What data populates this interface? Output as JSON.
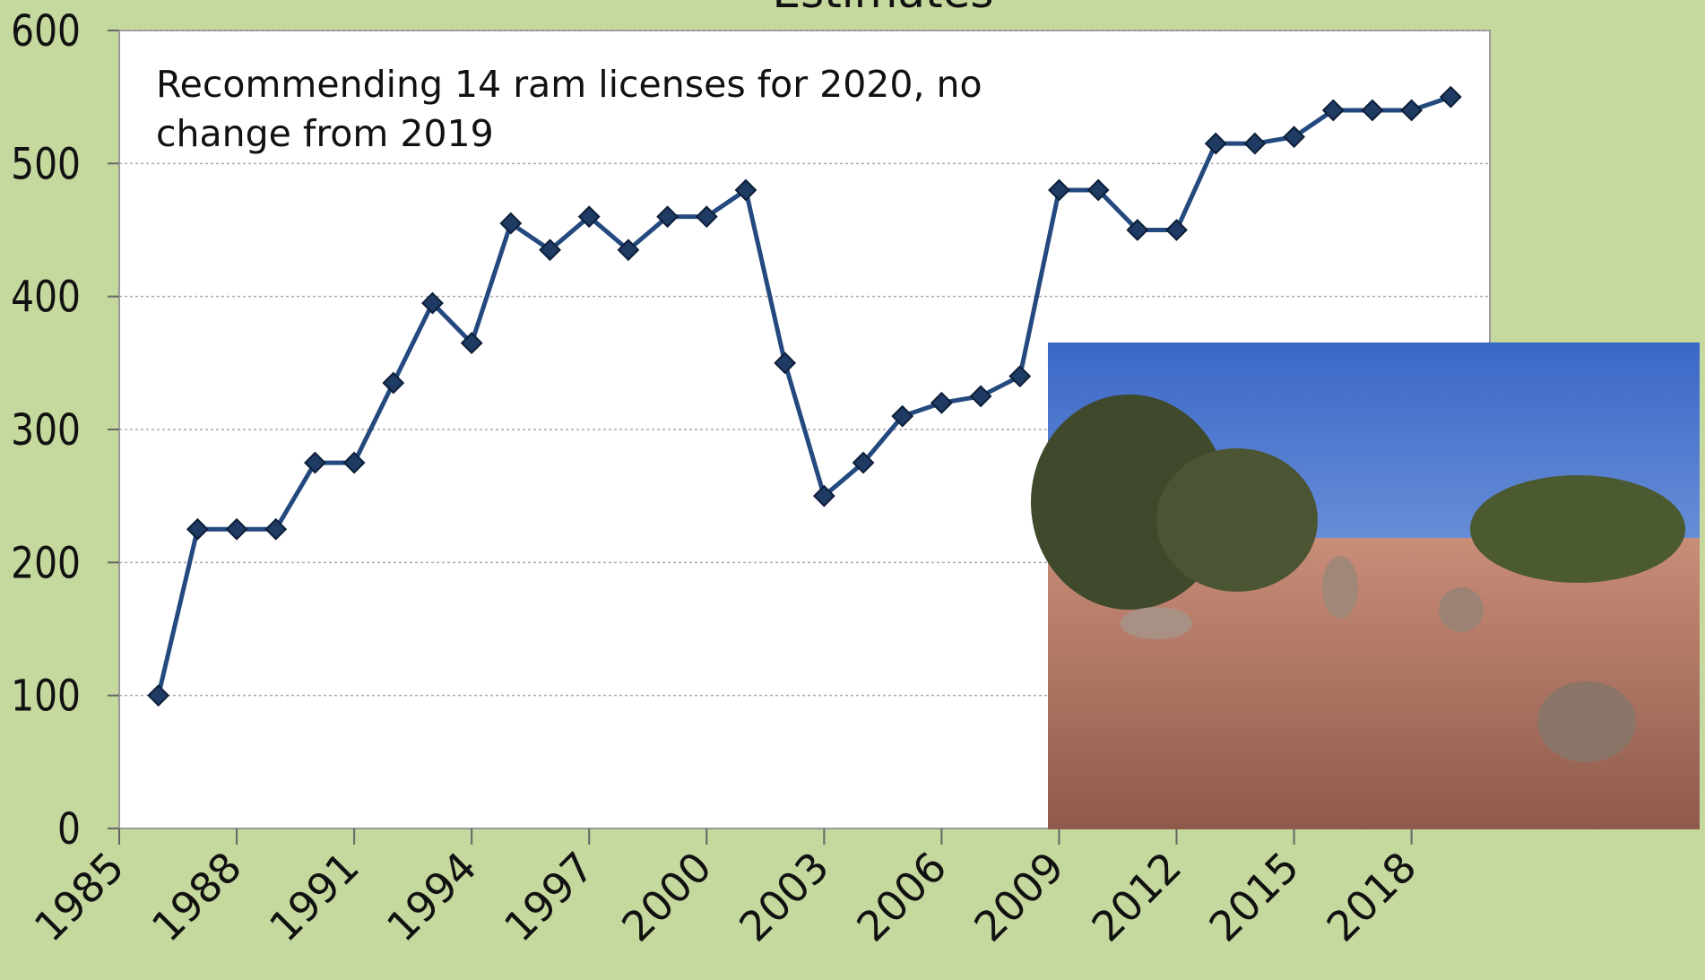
{
  "chart_data": {
    "type": "line",
    "title": "Estimates",
    "annotation": [
      "Recommending 14 ram licenses for 2020, no",
      "change from 2019"
    ],
    "x": [
      1986,
      1987,
      1988,
      1989,
      1990,
      1991,
      1992,
      1993,
      1994,
      1995,
      1996,
      1997,
      1998,
      1999,
      2000,
      2001,
      2002,
      2003,
      2004,
      2005,
      2006,
      2007,
      2008,
      2009,
      2010,
      2011,
      2012,
      2013,
      2014,
      2015,
      2016,
      2017,
      2018,
      2019
    ],
    "series": [
      {
        "color": "#24497e",
        "values": [
          100,
          225,
          225,
          225,
          275,
          275,
          335,
          395,
          365,
          455,
          435,
          460,
          435,
          460,
          460,
          480,
          350,
          250,
          275,
          310,
          320,
          325,
          340,
          480,
          480,
          450,
          450,
          515,
          515,
          520,
          540,
          540,
          540,
          550
        ]
      }
    ],
    "xlim": [
      1985,
      2020
    ],
    "xticks": [
      1985,
      1988,
      1991,
      1994,
      1997,
      2000,
      2003,
      2006,
      2009,
      2012,
      2015,
      2018
    ],
    "ylim": [
      0,
      600
    ],
    "yticks": [
      0,
      100,
      200,
      300,
      400,
      500,
      600
    ],
    "grid": true
  }
}
